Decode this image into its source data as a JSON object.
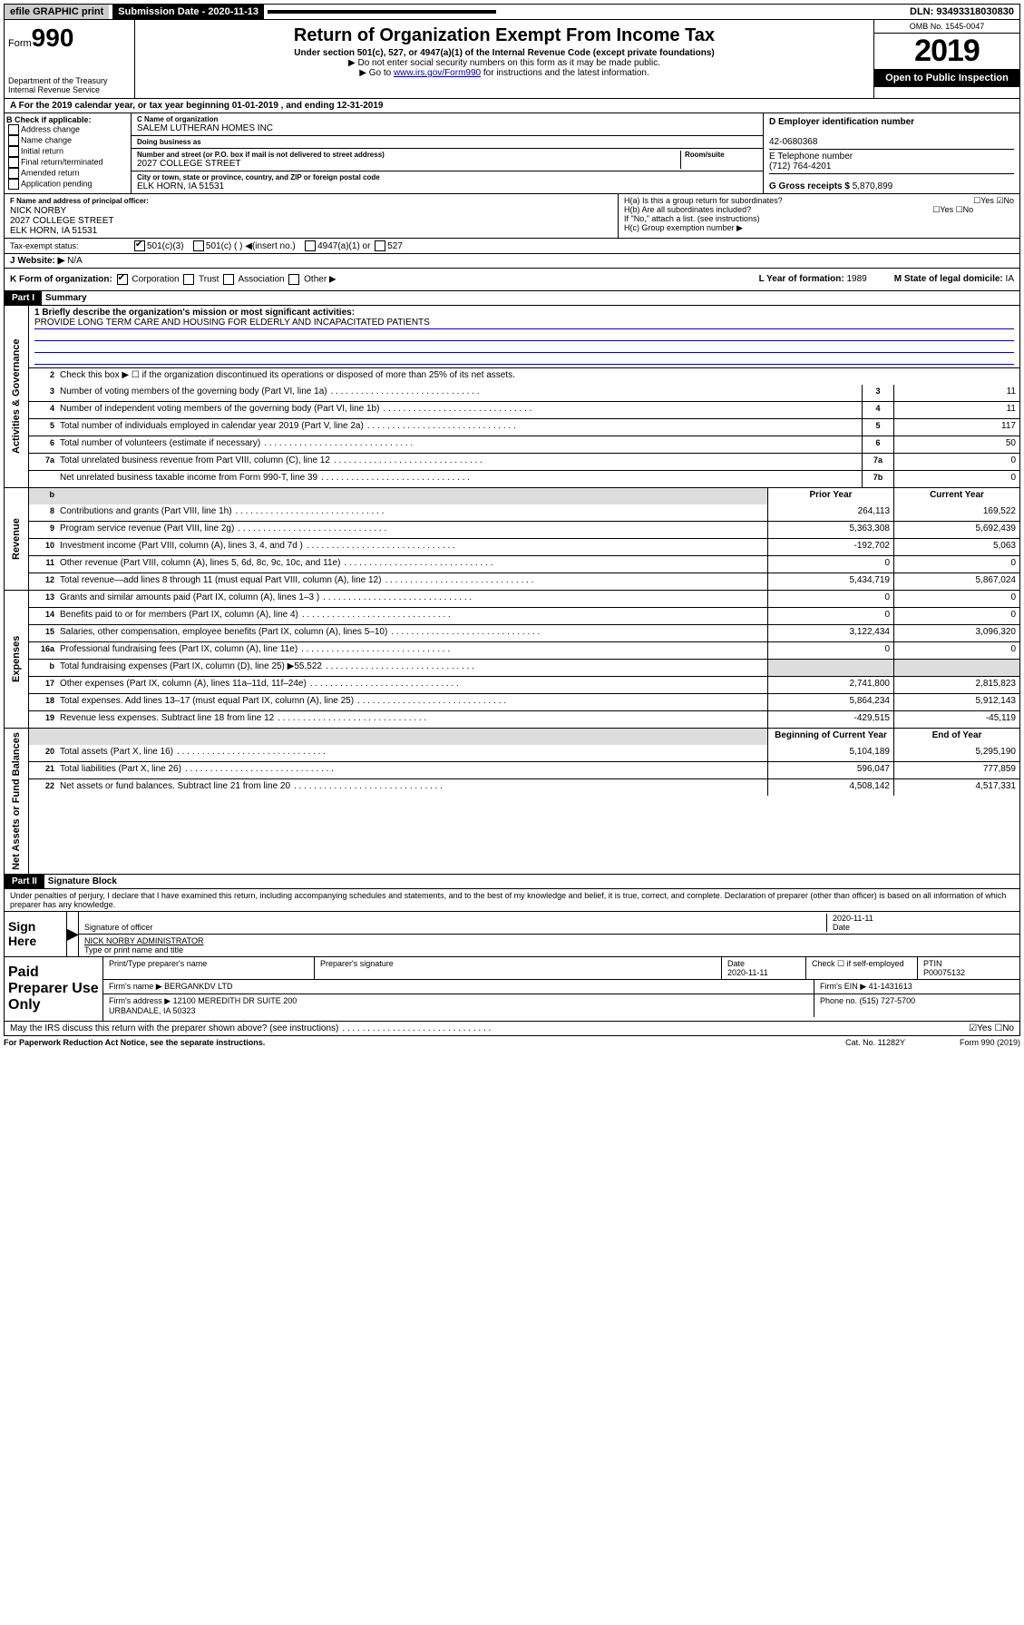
{
  "topbar": {
    "efile": "efile GRAPHIC print",
    "subdate_label": "Submission Date - 2020-11-13",
    "dln": "DLN: 93493318030830"
  },
  "header": {
    "form_word": "Form",
    "form_num": "990",
    "dept": "Department of the Treasury\nInternal Revenue Service",
    "title": "Return of Organization Exempt From Income Tax",
    "sub": "Under section 501(c), 527, or 4947(a)(1) of the Internal Revenue Code (except private foundations)",
    "note1": "▶ Do not enter social security numbers on this form as it may be made public.",
    "note2_pre": "▶ Go to ",
    "note2_link": "www.irs.gov/Form990",
    "note2_post": " for instructions and the latest information.",
    "omb": "OMB No. 1545-0047",
    "year": "2019",
    "open": "Open to Public Inspection"
  },
  "taxyear": "For the 2019 calendar year, or tax year beginning 01-01-2019   , and ending 12-31-2019",
  "checkboxes": {
    "title": "B Check if applicable:",
    "items": [
      "Address change",
      "Name change",
      "Initial return",
      "Final return/terminated",
      "Amended return",
      "Application pending"
    ]
  },
  "org": {
    "name_label": "C Name of organization",
    "name": "SALEM LUTHERAN HOMES INC",
    "dba_label": "Doing business as",
    "dba": "",
    "addr_label": "Number and street (or P.O. box if mail is not delivered to street address)",
    "room_label": "Room/suite",
    "addr": "2027 COLLEGE STREET",
    "city_label": "City or town, state or province, country, and ZIP or foreign postal code",
    "city": "ELK HORN, IA  51531",
    "officer_label": "F Name and address of principal officer:",
    "officer": "NICK NORBY\n2027 COLLEGE STREET\nELK HORN, IA  51531"
  },
  "id": {
    "d_label": "D Employer identification number",
    "ein": "42-0680368",
    "e_label": "E Telephone number",
    "phone": "(712) 764-4201",
    "g_label": "G Gross receipts $ ",
    "gross": "5,870,899"
  },
  "h": {
    "a": "H(a)  Is this a group return for subordinates?",
    "b": "H(b)  Are all subordinates included?",
    "note": "If \"No,\" attach a list. (see instructions)",
    "c": "H(c)  Group exemption number ▶",
    "yesno_a": "☐Yes ☑No",
    "yesno_b": "☐Yes ☐No"
  },
  "tax_status": {
    "label": "Tax-exempt status:",
    "opts": [
      "501(c)(3)",
      "501(c) (  ) ◀(insert no.)",
      "4947(a)(1) or",
      "527"
    ]
  },
  "website": {
    "label": "J   Website: ▶",
    "val": "N/A"
  },
  "k": {
    "label": "K Form of organization:",
    "opts": [
      "Corporation",
      "Trust",
      "Association",
      "Other ▶"
    ],
    "l_label": "L Year of formation: ",
    "l_val": "1989",
    "m_label": "M State of legal domicile: ",
    "m_val": "IA"
  },
  "part1": {
    "hdr": "Part I",
    "title": "Summary",
    "l1_label": "1  Briefly describe the organization's mission or most significant activities:",
    "l1_text": "PROVIDE LONG TERM CARE AND HOUSING FOR ELDERLY AND INCAPACITATED PATIENTS",
    "l2": "Check this box ▶ ☐  if the organization discontinued its operations or disposed of more than 25% of its net assets.",
    "lines_gov": [
      {
        "n": "3",
        "d": "Number of voting members of the governing body (Part VI, line 1a)",
        "c": "3",
        "v": "11"
      },
      {
        "n": "4",
        "d": "Number of independent voting members of the governing body (Part VI, line 1b)",
        "c": "4",
        "v": "11"
      },
      {
        "n": "5",
        "d": "Total number of individuals employed in calendar year 2019 (Part V, line 2a)",
        "c": "5",
        "v": "117"
      },
      {
        "n": "6",
        "d": "Total number of volunteers (estimate if necessary)",
        "c": "6",
        "v": "50"
      },
      {
        "n": "7a",
        "d": "Total unrelated business revenue from Part VIII, column (C), line 12",
        "c": "7a",
        "v": "0"
      },
      {
        "n": "",
        "d": "Net unrelated business taxable income from Form 990-T, line 39",
        "c": "7b",
        "v": "0"
      }
    ],
    "col_prior": "Prior Year",
    "col_curr": "Current Year",
    "lines_rev": [
      {
        "n": "8",
        "d": "Contributions and grants (Part VIII, line 1h)",
        "p": "264,113",
        "c": "169,522"
      },
      {
        "n": "9",
        "d": "Program service revenue (Part VIII, line 2g)",
        "p": "5,363,308",
        "c": "5,692,439"
      },
      {
        "n": "10",
        "d": "Investment income (Part VIII, column (A), lines 3, 4, and 7d )",
        "p": "-192,702",
        "c": "5,063"
      },
      {
        "n": "11",
        "d": "Other revenue (Part VIII, column (A), lines 5, 6d, 8c, 9c, 10c, and 11e)",
        "p": "0",
        "c": "0"
      },
      {
        "n": "12",
        "d": "Total revenue—add lines 8 through 11 (must equal Part VIII, column (A), line 12)",
        "p": "5,434,719",
        "c": "5,867,024"
      }
    ],
    "lines_exp": [
      {
        "n": "13",
        "d": "Grants and similar amounts paid (Part IX, column (A), lines 1–3 )",
        "p": "0",
        "c": "0"
      },
      {
        "n": "14",
        "d": "Benefits paid to or for members (Part IX, column (A), line 4)",
        "p": "0",
        "c": "0"
      },
      {
        "n": "15",
        "d": "Salaries, other compensation, employee benefits (Part IX, column (A), lines 5–10)",
        "p": "3,122,434",
        "c": "3,096,320"
      },
      {
        "n": "16a",
        "d": "Professional fundraising fees (Part IX, column (A), line 11e)",
        "p": "0",
        "c": "0"
      },
      {
        "n": "b",
        "d": "Total fundraising expenses (Part IX, column (D), line 25) ▶55,522",
        "p": "",
        "c": "",
        "shade": true
      },
      {
        "n": "17",
        "d": "Other expenses (Part IX, column (A), lines 11a–11d, 11f–24e)",
        "p": "2,741,800",
        "c": "2,815,823"
      },
      {
        "n": "18",
        "d": "Total expenses. Add lines 13–17 (must equal Part IX, column (A), line 25)",
        "p": "5,864,234",
        "c": "5,912,143"
      },
      {
        "n": "19",
        "d": "Revenue less expenses. Subtract line 18 from line 12",
        "p": "-429,515",
        "c": "-45,119"
      }
    ],
    "col_begin": "Beginning of Current Year",
    "col_end": "End of Year",
    "lines_net": [
      {
        "n": "20",
        "d": "Total assets (Part X, line 16)",
        "p": "5,104,189",
        "c": "5,295,190"
      },
      {
        "n": "21",
        "d": "Total liabilities (Part X, line 26)",
        "p": "596,047",
        "c": "777,859"
      },
      {
        "n": "22",
        "d": "Net assets or fund balances. Subtract line 21 from line 20",
        "p": "4,508,142",
        "c": "4,517,331"
      }
    ]
  },
  "part2": {
    "hdr": "Part II",
    "title": "Signature Block",
    "perjury": "Under penalties of perjury, I declare that I have examined this return, including accompanying schedules and statements, and to the best of my knowledge and belief, it is true, correct, and complete. Declaration of preparer (other than officer) is based on all information of which preparer has any knowledge.",
    "sign_here": "Sign Here",
    "sig_off": "Signature of officer",
    "date": "2020-11-11",
    "date_label": "Date",
    "name_title": "NICK NORBY  ADMINISTRATOR",
    "name_title_label": "Type or print name and title",
    "paid": "Paid Preparer Use Only",
    "prep_name_h": "Print/Type preparer's name",
    "prep_sig_h": "Preparer's signature",
    "prep_date_h": "Date",
    "prep_date": "2020-11-11",
    "check_self": "Check ☐ if self-employed",
    "ptin_h": "PTIN",
    "ptin": "P00075132",
    "firm_name_h": "Firm's name    ▶",
    "firm_name": "BERGANKDV LTD",
    "firm_ein_h": "Firm's EIN ▶",
    "firm_ein": "41-1431613",
    "firm_addr_h": "Firm's address ▶",
    "firm_addr": "12100 MEREDITH DR SUITE 200\nURBANDALE, IA  50323",
    "firm_phone_h": "Phone no. ",
    "firm_phone": "(515) 727-5700",
    "discuss": "May the IRS discuss this return with the preparer shown above? (see instructions)",
    "discuss_yn": "☑Yes ☐No"
  },
  "foot": {
    "pra": "For Paperwork Reduction Act Notice, see the separate instructions.",
    "cat": "Cat. No. 11282Y",
    "form": "Form 990 (2019)"
  },
  "vtabs": {
    "gov": "Activities & Governance",
    "rev": "Revenue",
    "exp": "Expenses",
    "net": "Net Assets or Fund Balances"
  }
}
